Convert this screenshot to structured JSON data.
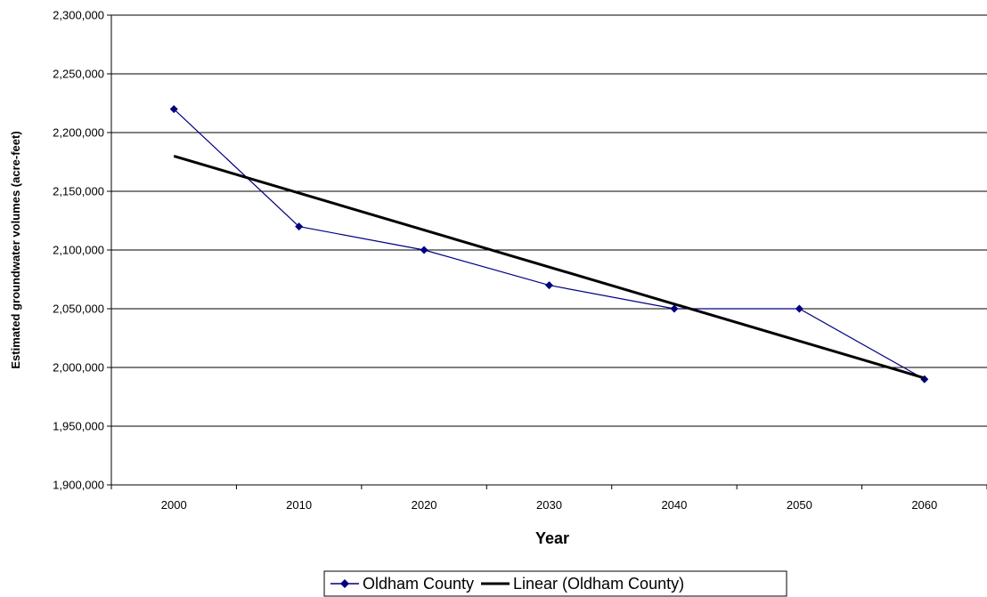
{
  "chart_data": {
    "type": "line",
    "title": "",
    "xlabel": "Year",
    "ylabel": "Estimated groundwater volumes (acre-feet)",
    "categories": [
      "2000",
      "2010",
      "2020",
      "2030",
      "2040",
      "2050",
      "2060"
    ],
    "yticks": [
      "1,900,000",
      "1,950,000",
      "2,000,000",
      "2,050,000",
      "2,100,000",
      "2,150,000",
      "2,200,000",
      "2,250,000",
      "2,300,000"
    ],
    "ylim": [
      1900000,
      2300000
    ],
    "grid": "horizontal",
    "legend_position": "bottom",
    "series": [
      {
        "name": "Oldham County",
        "values": [
          2220000,
          2120000,
          2100000,
          2070000,
          2050000,
          2050000,
          1990000
        ],
        "color": "#000080",
        "marker": "diamond"
      }
    ],
    "trendline": {
      "name": "Linear (Oldham County)",
      "type": "linear",
      "start": 2180000,
      "end": 1991000,
      "color": "#000000"
    }
  }
}
